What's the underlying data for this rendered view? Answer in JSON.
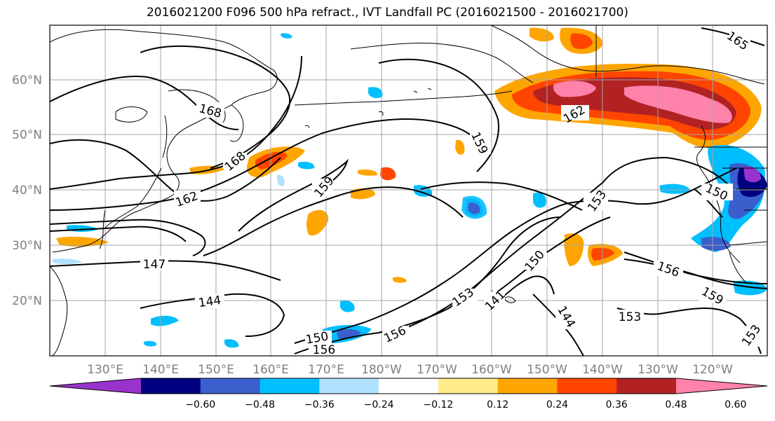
{
  "title": "2016021200 F096 500 hPa refract., IVT Landfall PC (2016021500 - 2016021700)",
  "lat_labels": [
    "60°N",
    "50°N",
    "40°N",
    "30°N",
    "20°N"
  ],
  "lon_labels": [
    "130°E",
    "140°E",
    "150°E",
    "160°E",
    "170°E",
    "180°W",
    "170°W",
    "160°W",
    "150°W",
    "140°W",
    "130°W",
    "120°W"
  ],
  "contour_labels": [
    "168",
    "168",
    "162",
    "159",
    "159",
    "162",
    "153",
    "150",
    "147",
    "150",
    "144",
    "141",
    "144",
    "153",
    "156",
    "159",
    "156",
    "150",
    "156",
    "153",
    "165"
  ],
  "colorbar": {
    "ticks": [
      "−0.60",
      "−0.48",
      "−0.36",
      "−0.24",
      "−0.12",
      "0.12",
      "0.24",
      "0.36",
      "0.48",
      "0.60"
    ],
    "colors": [
      "#9933cc",
      "#000080",
      "#3a5fcd",
      "#00bfff",
      "#b0e2ff",
      "#ffffff",
      "#ffec8b",
      "#ffa500",
      "#ff4500",
      "#b22222",
      "#ff82ab"
    ]
  }
}
